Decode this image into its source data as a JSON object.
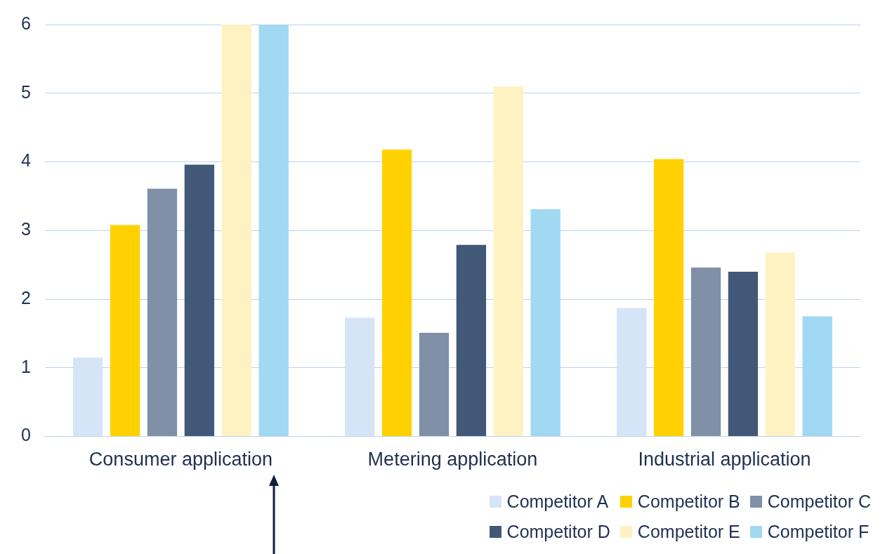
{
  "chart_data": {
    "type": "bar",
    "categories": [
      "Consumer application",
      "Metering application",
      "Industrial application"
    ],
    "series": [
      {
        "name": "Competitor A",
        "color": "#d6e4f8",
        "values": [
          1.15,
          1.73,
          1.87
        ]
      },
      {
        "name": "Competitor B",
        "color": "#ffd100",
        "values": [
          3.08,
          4.18,
          4.04
        ]
      },
      {
        "name": "Competitor C",
        "color": "#8090a6",
        "values": [
          3.61,
          1.51,
          2.46
        ]
      },
      {
        "name": "Competitor D",
        "color": "#425878",
        "values": [
          3.96,
          2.79,
          2.4
        ]
      },
      {
        "name": "Competitor E",
        "color": "#fff2c2",
        "values": [
          6,
          5.1,
          2.68
        ]
      },
      {
        "name": "Competitor F",
        "color": "#a1d8f2",
        "values": [
          6,
          3.31,
          1.75
        ]
      }
    ],
    "ylim": [
      0,
      6
    ],
    "yticks": [
      0,
      1,
      2,
      3,
      4,
      5,
      6
    ],
    "grid": "y",
    "legend": "bottom right"
  }
}
